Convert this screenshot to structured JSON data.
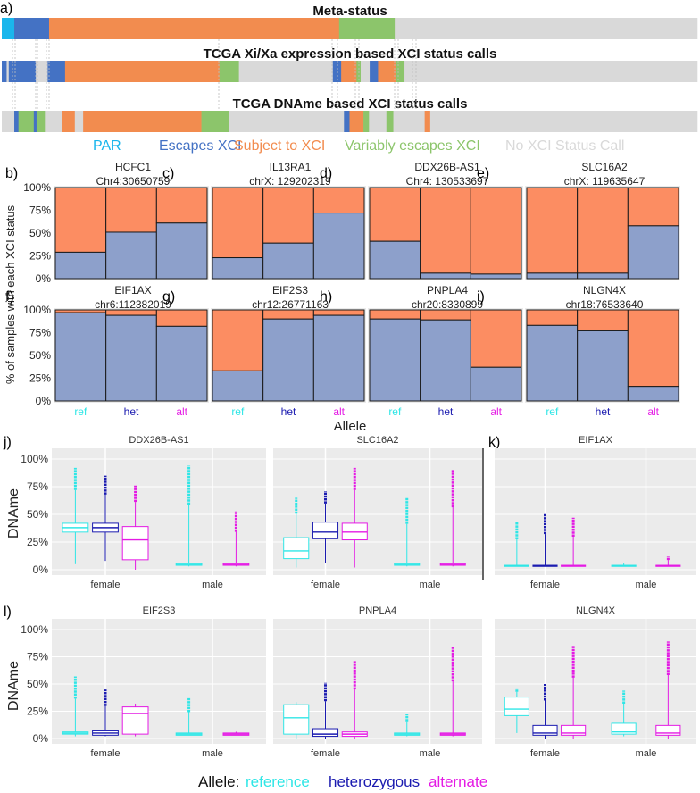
{
  "colors": {
    "par": "#1ab6ec",
    "escape": "#4472c4",
    "subject": "#f28c4f",
    "variable": "#8cc56b",
    "nocall": "#d9d9d9",
    "ref_color": "#2fe6e6",
    "het_color": "#1b1bb0",
    "alt_color": "#e41ae4",
    "bar_blue": "#8da0cb",
    "bar_orange": "#fc8d62",
    "panel_bg": "#ebebeb"
  },
  "panel_a": {
    "label": "a)",
    "tracks": [
      {
        "title": "Meta-status",
        "segments": [
          {
            "status": "par",
            "frac": 0.018
          },
          {
            "status": "escape",
            "frac": 0.05
          },
          {
            "status": "subject",
            "frac": 0.417
          },
          {
            "status": "variable",
            "frac": 0.08
          },
          {
            "status": "nocall",
            "frac": 0.435
          }
        ]
      },
      {
        "title": "TCGA Xi/Xa expression based XCI status calls",
        "segments": [
          {
            "status": "escape",
            "frac": 0.007
          },
          {
            "status": "nocall",
            "frac": 0.003
          },
          {
            "status": "escape",
            "frac": 0.039
          },
          {
            "status": "nocall",
            "frac": 0.017
          },
          {
            "status": "escape",
            "frac": 0.025
          },
          {
            "status": "subject",
            "frac": 0.222
          },
          {
            "status": "variable",
            "frac": 0.028
          },
          {
            "status": "nocall",
            "frac": 0.135
          },
          {
            "status": "escape",
            "frac": 0.012
          },
          {
            "status": "subject",
            "frac": 0.022
          },
          {
            "status": "variable",
            "frac": 0.006
          },
          {
            "status": "nocall",
            "frac": 0.013
          },
          {
            "status": "escape",
            "frac": 0.012
          },
          {
            "status": "subject",
            "frac": 0.026
          },
          {
            "status": "variable",
            "frac": 0.012
          },
          {
            "status": "nocall",
            "frac": 0.421
          }
        ]
      },
      {
        "title": "TCGA DNAme based XCI status calls",
        "segments": [
          {
            "status": "nocall",
            "frac": 0.018
          },
          {
            "status": "escape",
            "frac": 0.006
          },
          {
            "status": "variable",
            "frac": 0.022
          },
          {
            "status": "escape",
            "frac": 0.004
          },
          {
            "status": "variable",
            "frac": 0.012
          },
          {
            "status": "nocall",
            "frac": 0.025
          },
          {
            "status": "subject",
            "frac": 0.018
          },
          {
            "status": "nocall",
            "frac": 0.012
          },
          {
            "status": "subject",
            "frac": 0.17
          },
          {
            "status": "variable",
            "frac": 0.04
          },
          {
            "status": "nocall",
            "frac": 0.165
          },
          {
            "status": "escape",
            "frac": 0.008
          },
          {
            "status": "subject",
            "frac": 0.02
          },
          {
            "status": "variable",
            "frac": 0.008
          },
          {
            "status": "nocall",
            "frac": 0.025
          },
          {
            "status": "variable",
            "frac": 0.01
          },
          {
            "status": "nocall",
            "frac": 0.045
          },
          {
            "status": "subject",
            "frac": 0.008
          },
          {
            "status": "nocall",
            "frac": 0.384
          }
        ]
      }
    ],
    "legend": [
      {
        "key": "par",
        "label": "PAR"
      },
      {
        "key": "escape",
        "label": "Escapes XCI"
      },
      {
        "key": "subject",
        "label": "Subject to XCI"
      },
      {
        "key": "variable",
        "label": "Variably escapes XCI"
      },
      {
        "key": "nocall",
        "label": "No XCI Status Call"
      }
    ]
  },
  "stacked_axis": {
    "ylabel": "% of samples with each XCI status",
    "yticks": [
      "0%",
      "25%",
      "50%",
      "75%",
      "100%"
    ],
    "xlabel": "Allele",
    "categories": [
      "ref",
      "het",
      "alt"
    ]
  },
  "chart_data": [
    {
      "type": "bar",
      "stacked": true,
      "panel": "b)",
      "gene": "HCFC1",
      "locus": "Chr4:30650759",
      "categories": [
        "ref",
        "het",
        "alt"
      ],
      "series": [
        {
          "name": "Escapes XCI",
          "values": [
            29,
            51,
            61
          ]
        },
        {
          "name": "Subject to XCI",
          "values": [
            71,
            49,
            39
          ]
        }
      ],
      "ylim": [
        0,
        100
      ]
    },
    {
      "type": "bar",
      "stacked": true,
      "panel": "c)",
      "gene": "IL13RA1",
      "locus": "chrX: 129202319",
      "categories": [
        "ref",
        "het",
        "alt"
      ],
      "series": [
        {
          "name": "Escapes XCI",
          "values": [
            23,
            39,
            72
          ]
        },
        {
          "name": "Subject to XCI",
          "values": [
            77,
            61,
            28
          ]
        }
      ],
      "ylim": [
        0,
        100
      ]
    },
    {
      "type": "bar",
      "stacked": true,
      "panel": "d)",
      "gene": "DDX26B-AS1",
      "locus": "Chr4: 130533697",
      "categories": [
        "ref",
        "het",
        "alt"
      ],
      "series": [
        {
          "name": "Escapes XCI",
          "values": [
            41,
            6,
            5
          ]
        },
        {
          "name": "Subject to XCI",
          "values": [
            59,
            94,
            95
          ]
        }
      ],
      "ylim": [
        0,
        100
      ]
    },
    {
      "type": "bar",
      "stacked": true,
      "panel": "e)",
      "gene": "SLC16A2",
      "locus": "chrX: 119635647",
      "categories": [
        "ref",
        "het",
        "alt"
      ],
      "series": [
        {
          "name": "Escapes XCI",
          "values": [
            6,
            6,
            58
          ]
        },
        {
          "name": "Subject to XCI",
          "values": [
            94,
            94,
            42
          ]
        }
      ],
      "ylim": [
        0,
        100
      ]
    },
    {
      "type": "bar",
      "stacked": true,
      "panel": "f)",
      "gene": "EIF1AX",
      "locus": "chr6:112382019",
      "categories": [
        "ref",
        "het",
        "alt"
      ],
      "series": [
        {
          "name": "Escapes XCI",
          "values": [
            97,
            94,
            82
          ]
        },
        {
          "name": "Subject to XCI",
          "values": [
            3,
            6,
            18
          ]
        }
      ],
      "ylim": [
        0,
        100
      ]
    },
    {
      "type": "bar",
      "stacked": true,
      "panel": "g)",
      "gene": "EIF2S3",
      "locus": "chr12:26771163",
      "categories": [
        "ref",
        "het",
        "alt"
      ],
      "series": [
        {
          "name": "Escapes XCI",
          "values": [
            33,
            90,
            94
          ]
        },
        {
          "name": "Subject to XCI",
          "values": [
            67,
            10,
            6
          ]
        }
      ],
      "ylim": [
        0,
        100
      ]
    },
    {
      "type": "bar",
      "stacked": true,
      "panel": "h)",
      "gene": "PNPLA4",
      "locus": "chr20:8330899",
      "categories": [
        "ref",
        "het",
        "alt"
      ],
      "series": [
        {
          "name": "Escapes XCI",
          "values": [
            90,
            89,
            37
          ]
        },
        {
          "name": "Subject to XCI",
          "values": [
            10,
            11,
            63
          ]
        }
      ],
      "ylim": [
        0,
        100
      ]
    },
    {
      "type": "bar",
      "stacked": true,
      "panel": "i)",
      "gene": "NLGN4X",
      "locus": "chr18:76533640",
      "categories": [
        "ref",
        "het",
        "alt"
      ],
      "series": [
        {
          "name": "Escapes XCI",
          "values": [
            83,
            77,
            16
          ]
        },
        {
          "name": "Subject to XCI",
          "values": [
            17,
            23,
            84
          ]
        }
      ],
      "ylim": [
        0,
        100
      ]
    }
  ],
  "box_axis": {
    "ylabel": "DNAme",
    "yticks": [
      "0%",
      "25%",
      "50%",
      "75%",
      "100%"
    ],
    "groups": [
      "female",
      "male"
    ]
  },
  "box_data": [
    {
      "panel": "j)",
      "gene": "DDX26B-AS1",
      "female": [
        {
          "allele": "ref",
          "q1": 34,
          "median": 38,
          "q3": 42,
          "lo": 5,
          "hi": 92
        },
        {
          "allele": "het",
          "q1": 34,
          "median": 38,
          "q3": 42,
          "lo": 8,
          "hi": 85
        },
        {
          "allele": "alt",
          "q1": 9,
          "median": 27,
          "q3": 39,
          "lo": 0,
          "hi": 76
        }
      ],
      "male": [
        {
          "allele": "ref",
          "q1": 4,
          "median": 5,
          "q3": 6,
          "lo": 3,
          "hi": 94
        },
        {
          "allele": "alt",
          "q1": 4,
          "median": 5,
          "q3": 6,
          "lo": 3,
          "hi": 53
        }
      ]
    },
    {
      "panel": "",
      "gene": "SLC16A2",
      "female": [
        {
          "allele": "ref",
          "q1": 10,
          "median": 17,
          "q3": 29,
          "lo": 2,
          "hi": 65
        },
        {
          "allele": "het",
          "q1": 28,
          "median": 34,
          "q3": 43,
          "lo": 6,
          "hi": 71
        },
        {
          "allele": "alt",
          "q1": 27,
          "median": 34,
          "q3": 42,
          "lo": 2,
          "hi": 92
        }
      ],
      "male": [
        {
          "allele": "ref",
          "q1": 4,
          "median": 5,
          "q3": 6,
          "lo": 3,
          "hi": 65
        },
        {
          "allele": "alt",
          "q1": 4,
          "median": 5,
          "q3": 6,
          "lo": 3,
          "hi": 90
        }
      ]
    },
    {
      "panel": "k)",
      "gene": "EIF1AX",
      "female": [
        {
          "allele": "ref",
          "q1": 3,
          "median": 3.5,
          "q3": 4,
          "lo": 3,
          "hi": 43
        },
        {
          "allele": "het",
          "q1": 3,
          "median": 3.5,
          "q3": 4,
          "lo": 3,
          "hi": 51
        },
        {
          "allele": "alt",
          "q1": 3,
          "median": 3.5,
          "q3": 4,
          "lo": 3,
          "hi": 47
        }
      ],
      "male": [
        {
          "allele": "ref",
          "q1": 3,
          "median": 3.5,
          "q3": 4,
          "lo": 3,
          "hi": 7
        },
        {
          "allele": "alt",
          "q1": 3,
          "median": 3.5,
          "q3": 4,
          "lo": 3,
          "hi": 12
        }
      ]
    },
    {
      "panel": "l)",
      "gene": "EIF2S3",
      "female": [
        {
          "allele": "ref",
          "q1": 4,
          "median": 5,
          "q3": 6,
          "lo": 2,
          "hi": 57
        },
        {
          "allele": "het",
          "q1": 3,
          "median": 5,
          "q3": 7,
          "lo": 2,
          "hi": 45
        },
        {
          "allele": "alt",
          "q1": 4,
          "median": 23,
          "q3": 29,
          "lo": 2,
          "hi": 34
        }
      ],
      "male": [
        {
          "allele": "ref",
          "q1": 3,
          "median": 4,
          "q3": 5,
          "lo": 3,
          "hi": 37
        },
        {
          "allele": "alt",
          "q1": 3,
          "median": 4,
          "q3": 5,
          "lo": 3,
          "hi": 7
        }
      ]
    },
    {
      "panel": "",
      "gene": "PNPLA4",
      "female": [
        {
          "allele": "ref",
          "q1": 4,
          "median": 19,
          "q3": 31,
          "lo": 0,
          "hi": 35
        },
        {
          "allele": "het",
          "q1": 2,
          "median": 4,
          "q3": 9,
          "lo": 0,
          "hi": 51
        },
        {
          "allele": "alt",
          "q1": 2,
          "median": 4,
          "q3": 6,
          "lo": 0,
          "hi": 71
        }
      ],
      "male": [
        {
          "allele": "ref",
          "q1": 3,
          "median": 4,
          "q3": 5,
          "lo": 2,
          "hi": 23
        },
        {
          "allele": "alt",
          "q1": 3,
          "median": 4,
          "q3": 5,
          "lo": 2,
          "hi": 84
        }
      ]
    },
    {
      "panel": "",
      "gene": "NLGN4X",
      "female": [
        {
          "allele": "ref",
          "q1": 21,
          "median": 27,
          "q3": 38,
          "lo": 5,
          "hi": 46
        },
        {
          "allele": "het",
          "q1": 3,
          "median": 5,
          "q3": 12,
          "lo": 0,
          "hi": 50
        },
        {
          "allele": "alt",
          "q1": 3,
          "median": 5,
          "q3": 12,
          "lo": 0,
          "hi": 85
        }
      ],
      "male": [
        {
          "allele": "ref",
          "q1": 4,
          "median": 6,
          "q3": 14,
          "lo": 2,
          "hi": 44
        },
        {
          "allele": "alt",
          "q1": 3,
          "median": 5,
          "q3": 12,
          "lo": 0,
          "hi": 89
        }
      ]
    }
  ],
  "allele_legend": {
    "title": "Allele:",
    "items": [
      {
        "key": "ref",
        "label": "reference"
      },
      {
        "key": "het",
        "label": "heterozygous"
      },
      {
        "key": "alt",
        "label": "alternate"
      }
    ]
  }
}
